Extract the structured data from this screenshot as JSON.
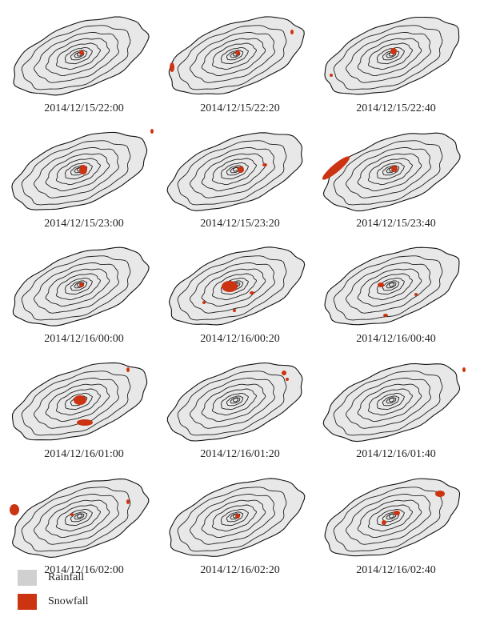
{
  "panels": [
    {
      "label": "2014/12/15/22:00"
    },
    {
      "label": "2014/12/15/22:20"
    },
    {
      "label": "2014/12/15/22:40"
    },
    {
      "label": "2014/12/15/23:00"
    },
    {
      "label": "2014/12/15/23:20"
    },
    {
      "label": "2014/12/15/23:40"
    },
    {
      "label": "2014/12/16/00:00"
    },
    {
      "label": "2014/12/16/00:20"
    },
    {
      "label": "2014/12/16/00:40"
    },
    {
      "label": "2014/12/16/01:00"
    },
    {
      "label": "2014/12/16/01:20"
    },
    {
      "label": "2014/12/16/01:40"
    },
    {
      "label": "2014/12/16/02:00"
    },
    {
      "label": "2014/12/16/02:20"
    },
    {
      "label": "2014/12/16/02:40"
    }
  ],
  "legend": [
    {
      "label": "Rainfall"
    },
    {
      "label": "Snowfall"
    }
  ]
}
